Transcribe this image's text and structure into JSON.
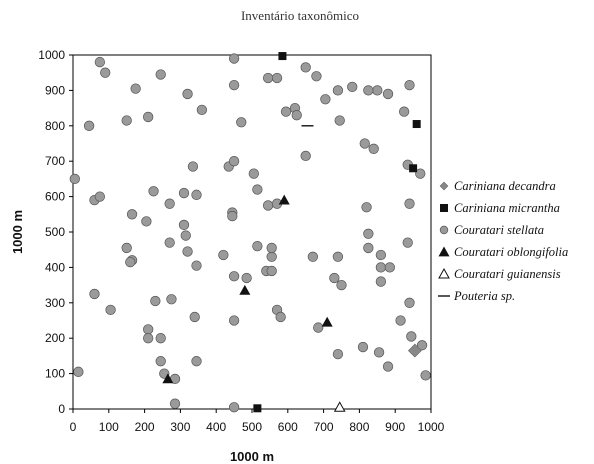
{
  "chart_data": {
    "type": "scatter",
    "title": "Inventário taxonômico",
    "xlabel": "1000 m",
    "ylabel": "1000 m",
    "xlim": [
      0,
      1000
    ],
    "ylim": [
      0,
      1000
    ],
    "x_ticks": [
      0,
      100,
      200,
      300,
      400,
      500,
      600,
      700,
      800,
      900,
      1000
    ],
    "y_ticks": [
      0,
      100,
      200,
      300,
      400,
      500,
      600,
      700,
      800,
      900,
      1000
    ],
    "grid": false,
    "legend_position": "right",
    "series": [
      {
        "name": "Cariniana decandra",
        "marker": "diamond",
        "color": "#888888",
        "points": [
          [
            955,
            165
          ]
        ]
      },
      {
        "name": "Cariniana micrantha",
        "marker": "square",
        "color": "#111111",
        "points": [
          [
            585,
            997
          ],
          [
            960,
            805
          ],
          [
            950,
            680
          ],
          [
            515,
            2
          ]
        ]
      },
      {
        "name": "Couratari stellata",
        "marker": "circle",
        "color": "#9a9a9a",
        "points": [
          [
            75,
            980
          ],
          [
            90,
            950
          ],
          [
            175,
            905
          ],
          [
            245,
            945
          ],
          [
            320,
            890
          ],
          [
            450,
            990
          ],
          [
            545,
            935
          ],
          [
            570,
            935
          ],
          [
            650,
            965
          ],
          [
            680,
            940
          ],
          [
            780,
            910
          ],
          [
            850,
            900
          ],
          [
            880,
            890
          ],
          [
            940,
            915
          ],
          [
            705,
            875
          ],
          [
            595,
            840
          ],
          [
            620,
            850
          ],
          [
            625,
            830
          ],
          [
            740,
            900
          ],
          [
            825,
            900
          ],
          [
            45,
            800
          ],
          [
            150,
            815
          ],
          [
            360,
            845
          ],
          [
            450,
            915
          ],
          [
            470,
            810
          ],
          [
            745,
            815
          ],
          [
            815,
            750
          ],
          [
            840,
            735
          ],
          [
            925,
            840
          ],
          [
            935,
            690
          ],
          [
            970,
            665
          ],
          [
            650,
            715
          ],
          [
            210,
            825
          ],
          [
            5,
            650
          ],
          [
            60,
            590
          ],
          [
            75,
            600
          ],
          [
            165,
            550
          ],
          [
            205,
            530
          ],
          [
            225,
            615
          ],
          [
            270,
            580
          ],
          [
            310,
            610
          ],
          [
            310,
            520
          ],
          [
            345,
            605
          ],
          [
            335,
            685
          ],
          [
            435,
            685
          ],
          [
            450,
            700
          ],
          [
            445,
            555
          ],
          [
            445,
            545
          ],
          [
            515,
            620
          ],
          [
            505,
            665
          ],
          [
            545,
            575
          ],
          [
            570,
            580
          ],
          [
            820,
            570
          ],
          [
            940,
            580
          ],
          [
            165,
            420
          ],
          [
            160,
            415
          ],
          [
            150,
            455
          ],
          [
            270,
            470
          ],
          [
            315,
            490
          ],
          [
            320,
            445
          ],
          [
            345,
            405
          ],
          [
            420,
            435
          ],
          [
            450,
            375
          ],
          [
            485,
            370
          ],
          [
            515,
            460
          ],
          [
            540,
            390
          ],
          [
            555,
            390
          ],
          [
            555,
            430
          ],
          [
            555,
            455
          ],
          [
            670,
            430
          ],
          [
            740,
            430
          ],
          [
            825,
            495
          ],
          [
            825,
            455
          ],
          [
            860,
            435
          ],
          [
            860,
            400
          ],
          [
            885,
            400
          ],
          [
            935,
            470
          ],
          [
            60,
            325
          ],
          [
            105,
            280
          ],
          [
            230,
            305
          ],
          [
            275,
            310
          ],
          [
            340,
            260
          ],
          [
            450,
            250
          ],
          [
            570,
            280
          ],
          [
            580,
            260
          ],
          [
            685,
            230
          ],
          [
            730,
            370
          ],
          [
            750,
            350
          ],
          [
            860,
            360
          ],
          [
            915,
            250
          ],
          [
            940,
            300
          ],
          [
            945,
            205
          ],
          [
            975,
            180
          ],
          [
            210,
            225
          ],
          [
            210,
            200
          ],
          [
            245,
            200
          ],
          [
            245,
            135
          ],
          [
            255,
            100
          ],
          [
            285,
            85
          ],
          [
            345,
            135
          ],
          [
            15,
            105
          ],
          [
            285,
            15
          ],
          [
            450,
            5
          ],
          [
            740,
            155
          ],
          [
            810,
            175
          ],
          [
            855,
            160
          ],
          [
            880,
            120
          ],
          [
            985,
            95
          ]
        ]
      },
      {
        "name": "Couratari oblongifolia",
        "marker": "triangle",
        "color": "#111111",
        "points": [
          [
            590,
            590
          ],
          [
            480,
            335
          ],
          [
            710,
            245
          ],
          [
            265,
            85
          ]
        ]
      },
      {
        "name": "Couratari guianensis",
        "marker": "triangle-open",
        "color": "#111111",
        "points": [
          [
            745,
            5
          ]
        ]
      },
      {
        "name": "Pouteria sp.",
        "marker": "dash",
        "color": "#111111",
        "points": [
          [
            655,
            800
          ]
        ]
      }
    ]
  }
}
